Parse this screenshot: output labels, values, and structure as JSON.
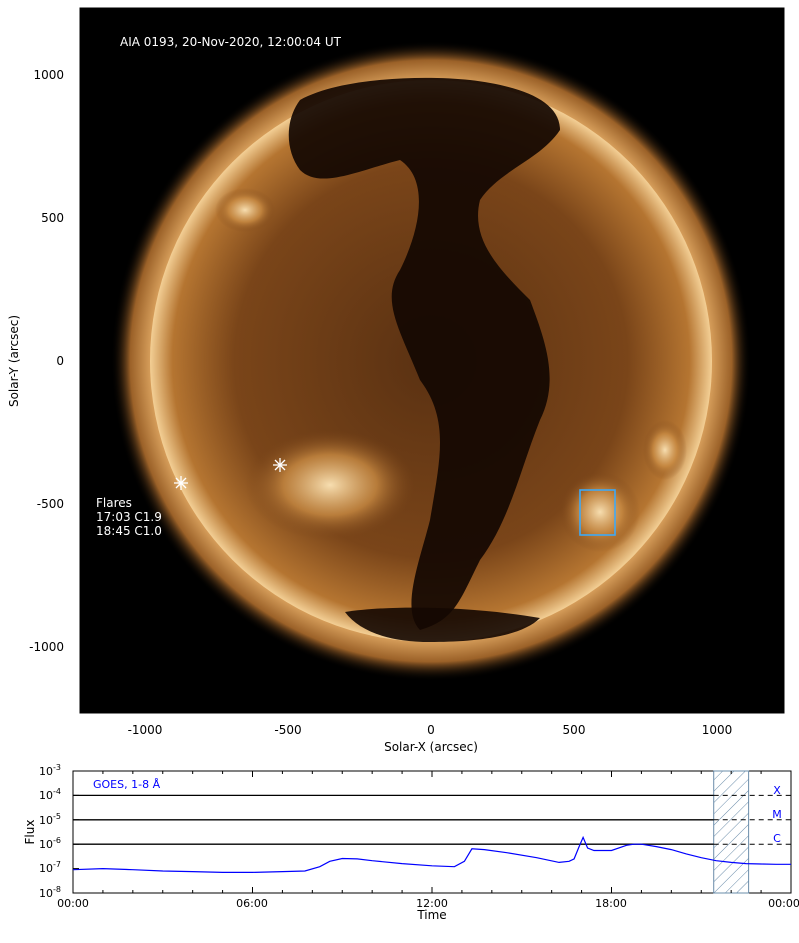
{
  "image_panel": {
    "overlay_title": "AIA 0193, 20-Nov-2020, 12:00:04 UT",
    "x_axis_label": "Solar-X (arcsec)",
    "y_axis_label": "Solar-Y (arcsec)",
    "x_ticks": [
      "-1000",
      "-500",
      "0",
      "500",
      "1000"
    ],
    "y_ticks": [
      "1000",
      "500",
      "0",
      "-500",
      "-1000"
    ],
    "flares": {
      "heading": "Flares",
      "entries": [
        "17:03 C1.9",
        "18:45 C1.0"
      ]
    },
    "colors": {
      "background": "#000000",
      "disk_dark": "#3a1e08",
      "disk_bright": "#f1c88a",
      "region_box": "#3fa9f5",
      "marker": "#ffffff"
    }
  },
  "flux_panel": {
    "legend": "GOES, 1-8 Å",
    "y_axis_label": "Flux",
    "x_axis_label": "Time",
    "x_ticks": [
      "00:00",
      "06:00",
      "12:00",
      "18:00",
      "00:00"
    ],
    "y_ticks": [
      "10",
      "10",
      "10",
      "10",
      "10",
      "10"
    ],
    "y_tick_exponents": [
      "-3",
      "-4",
      "-5",
      "-6",
      "-7",
      "-8"
    ],
    "class_labels": [
      "X",
      "M",
      "C"
    ],
    "line_color": "#0000ff"
  },
  "chart_data": {
    "type": "line",
    "title": "",
    "legend": [
      "GOES, 1-8 Å"
    ],
    "xlabel": "Time",
    "ylabel": "Flux",
    "x_range": [
      "00:00",
      "24:00"
    ],
    "ylim": [
      1e-08,
      0.001
    ],
    "log_y": true,
    "class_thresholds": [
      {
        "label": "X",
        "value": 0.0001
      },
      {
        "label": "M",
        "value": 1e-05
      },
      {
        "label": "C",
        "value": 1e-06
      }
    ],
    "highlighted_interval": [
      "21:25",
      "22:35"
    ],
    "series": [
      {
        "name": "GOES, 1-8 Å",
        "x": [
          "00:00",
          "01:00",
          "02:00",
          "03:00",
          "04:00",
          "05:00",
          "06:00",
          "07:00",
          "07:45",
          "08:15",
          "08:35",
          "09:00",
          "09:30",
          "10:00",
          "11:00",
          "12:00",
          "12:45",
          "13:05",
          "13:20",
          "13:45",
          "14:30",
          "15:30",
          "16:15",
          "16:35",
          "16:45",
          "16:55",
          "17:03",
          "17:12",
          "17:25",
          "17:45",
          "18:00",
          "18:30",
          "18:45",
          "19:00",
          "19:30",
          "20:00",
          "20:30",
          "21:00",
          "21:30",
          "22:00",
          "22:30",
          "23:00",
          "23:30",
          "24:00"
        ],
        "y": [
          9e-08,
          1e-07,
          9e-08,
          8e-08,
          7.5e-08,
          7e-08,
          7e-08,
          7.5e-08,
          8e-08,
          1.2e-07,
          2e-07,
          2.6e-07,
          2.5e-07,
          2.1e-07,
          1.6e-07,
          1.3e-07,
          1.2e-07,
          2e-07,
          6.5e-07,
          6e-07,
          4.5e-07,
          2.8e-07,
          1.8e-07,
          2e-07,
          2.5e-07,
          8e-07,
          1.9e-06,
          7e-07,
          5.5e-07,
          5.5e-07,
          5.5e-07,
          9e-07,
          1e-06,
          1e-06,
          8e-07,
          6e-07,
          4e-07,
          2.8e-07,
          2.1e-07,
          1.8e-07,
          1.6e-07,
          1.55e-07,
          1.5e-07,
          1.5e-07
        ]
      }
    ],
    "flares": [
      {
        "time": "17:03",
        "class": "C1.9"
      },
      {
        "time": "18:45",
        "class": "C1.0"
      }
    ]
  }
}
